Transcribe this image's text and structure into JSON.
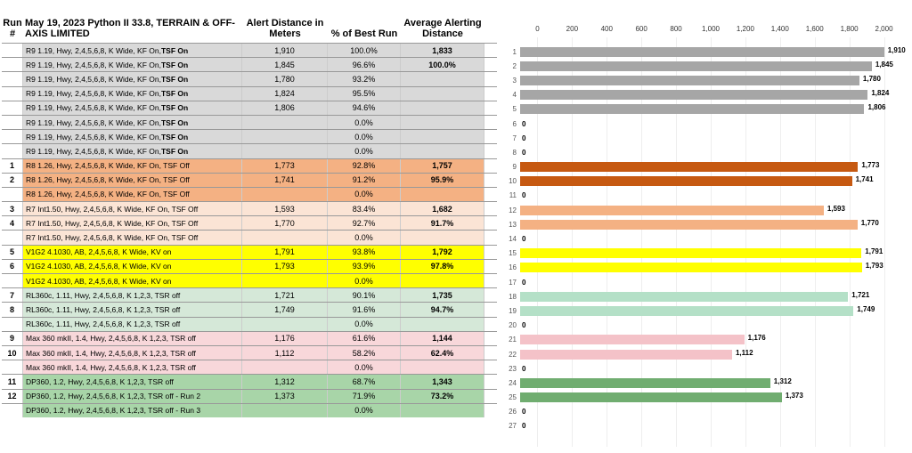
{
  "title": "May 19, 2023 Python II 33.8, TERRAIN & OFF-AXIS LIMITED",
  "columns": {
    "run": "Run #",
    "alert": "Alert Distance in Meters",
    "pct": "% of Best Run",
    "avg": "Average Alerting Distance"
  },
  "chart": {
    "x_min": 0,
    "x_max": 2000,
    "x_ticks": [
      0,
      200,
      400,
      600,
      800,
      1000,
      1200,
      1400,
      1600,
      1800,
      2000
    ],
    "max_bar": 2000
  },
  "colors": {
    "gray": "#d9d9d9",
    "orange_dark": "#f4b183",
    "orange_light": "#fbe4d5",
    "yellow": "#ffff00",
    "mint": "#d5e8d8",
    "pink": "#f8d7da",
    "green": "#a8d5a8",
    "bar_gray": "#a6a6a6",
    "bar_orange_dark": "#c65911",
    "bar_orange_light": "#f4b183",
    "bar_yellow": "#ffff00",
    "bar_mint": "#b4e0c7",
    "bar_pink": "#f4c2c8",
    "bar_green": "#70ad70"
  },
  "rows": [
    {
      "run": "",
      "desc_pre": "R9 1.19, Hwy, 2,4,5,6,8, K Wide, KF On, ",
      "desc_bold": "TSF On",
      "alert": "1,910",
      "pct": "100.0%",
      "avg": "1,833",
      "bg": "gray",
      "bar": 1910,
      "bar_color": "bar_gray"
    },
    {
      "run": "",
      "desc_pre": "R9 1.19, Hwy, 2,4,5,6,8, K Wide, KF On, ",
      "desc_bold": "TSF On",
      "alert": "1,845",
      "pct": "96.6%",
      "avg": "100.0%",
      "bg": "gray",
      "bar": 1845,
      "bar_color": "bar_gray"
    },
    {
      "run": "",
      "desc_pre": "R9 1.19, Hwy, 2,4,5,6,8, K Wide, KF On, ",
      "desc_bold": "TSF On",
      "alert": "1,780",
      "pct": "93.2%",
      "avg": "",
      "bg": "gray",
      "bar": 1780,
      "bar_color": "bar_gray"
    },
    {
      "run": "",
      "desc_pre": "R9 1.19, Hwy, 2,4,5,6,8, K Wide, KF On, ",
      "desc_bold": "TSF On",
      "alert": "1,824",
      "pct": "95.5%",
      "avg": "",
      "bg": "gray",
      "bar": 1824,
      "bar_color": "bar_gray"
    },
    {
      "run": "",
      "desc_pre": "R9 1.19, Hwy, 2,4,5,6,8, K Wide, KF On, ",
      "desc_bold": "TSF On",
      "alert": "1,806",
      "pct": "94.6%",
      "avg": "",
      "bg": "gray",
      "bar": 1806,
      "bar_color": "bar_gray"
    },
    {
      "run": "",
      "desc_pre": "R9 1.19, Hwy, 2,4,5,6,8, K Wide, KF On, ",
      "desc_bold": "TSF On",
      "alert": "",
      "pct": "0.0%",
      "avg": "",
      "bg": "gray",
      "bar": 0,
      "bar_color": "bar_gray"
    },
    {
      "run": "",
      "desc_pre": "R9 1.19, Hwy, 2,4,5,6,8, K Wide, KF On, ",
      "desc_bold": "TSF On",
      "alert": "",
      "pct": "0.0%",
      "avg": "",
      "bg": "gray",
      "bar": 0,
      "bar_color": "bar_gray"
    },
    {
      "run": "",
      "desc_pre": "R9 1.19, Hwy, 2,4,5,6,8, K Wide, KF On, ",
      "desc_bold": "TSF On",
      "alert": "",
      "pct": "0.0%",
      "avg": "",
      "bg": "gray",
      "bar": 0,
      "bar_color": "bar_gray"
    },
    {
      "run": "1",
      "desc_pre": "R8 1.26, Hwy, 2,4,5,6,8, K Wide, KF On, TSF Off",
      "desc_bold": "",
      "alert": "1,773",
      "pct": "92.8%",
      "avg": "1,757",
      "bg": "orange_dark",
      "bar": 1773,
      "bar_color": "bar_orange_dark"
    },
    {
      "run": "2",
      "desc_pre": "R8 1.26, Hwy, 2,4,5,6,8, K Wide, KF On, TSF Off",
      "desc_bold": "",
      "alert": "1,741",
      "pct": "91.2%",
      "avg": "95.9%",
      "bg": "orange_dark",
      "bar": 1741,
      "bar_color": "bar_orange_dark"
    },
    {
      "run": "",
      "desc_pre": "R8 1.26, Hwy, 2,4,5,6,8, K Wide, KF On, TSF Off",
      "desc_bold": "",
      "alert": "",
      "pct": "0.0%",
      "avg": "",
      "bg": "orange_dark",
      "bar": 0,
      "bar_color": "bar_orange_dark"
    },
    {
      "run": "3",
      "desc_pre": "R7 Int1.50, Hwy, 2,4,5,6,8, K Wide, KF On, TSF Off",
      "desc_bold": "",
      "alert": "1,593",
      "pct": "83.4%",
      "avg": "1,682",
      "bg": "orange_light",
      "bar": 1593,
      "bar_color": "bar_orange_light"
    },
    {
      "run": "4",
      "desc_pre": "R7 Int1.50, Hwy, 2,4,5,6,8, K Wide, KF On, TSF Off",
      "desc_bold": "",
      "alert": "1,770",
      "pct": "92.7%",
      "avg": "91.7%",
      "bg": "orange_light",
      "bar": 1770,
      "bar_color": "bar_orange_light"
    },
    {
      "run": "",
      "desc_pre": "R7 Int1.50, Hwy, 2,4,5,6,8, K Wide, KF On, TSF Off",
      "desc_bold": "",
      "alert": "",
      "pct": "0.0%",
      "avg": "",
      "bg": "orange_light",
      "bar": 0,
      "bar_color": "bar_orange_light"
    },
    {
      "run": "5",
      "desc_pre": "V1G2 4.1030, AB, 2,4,5,6,8, K Wide, KV on",
      "desc_bold": "",
      "alert": "1,791",
      "pct": "93.8%",
      "avg": "1,792",
      "bg": "yellow",
      "bar": 1791,
      "bar_color": "bar_yellow"
    },
    {
      "run": "6",
      "desc_pre": "V1G2 4.1030, AB, 2,4,5,6,8, K Wide, KV on",
      "desc_bold": "",
      "alert": "1,793",
      "pct": "93.9%",
      "avg": "97.8%",
      "bg": "yellow",
      "bar": 1793,
      "bar_color": "bar_yellow"
    },
    {
      "run": "",
      "desc_pre": "V1G2 4.1030, AB, 2,4,5,6,8, K Wide, KV on",
      "desc_bold": "",
      "alert": "",
      "pct": "0.0%",
      "avg": "",
      "bg": "yellow",
      "bar": 0,
      "bar_color": "bar_yellow"
    },
    {
      "run": "7",
      "desc_pre": "RL360c, 1.11, Hwy, 2,4,5,6,8, K 1,2,3, TSR off",
      "desc_bold": "",
      "alert": "1,721",
      "pct": "90.1%",
      "avg": "1,735",
      "bg": "mint",
      "bar": 1721,
      "bar_color": "bar_mint"
    },
    {
      "run": "8",
      "desc_pre": "RL360c, 1.11, Hwy, 2,4,5,6,8, K 1,2,3, TSR off",
      "desc_bold": "",
      "alert": "1,749",
      "pct": "91.6%",
      "avg": "94.7%",
      "bg": "mint",
      "bar": 1749,
      "bar_color": "bar_mint"
    },
    {
      "run": "",
      "desc_pre": "RL360c, 1.11, Hwy, 2,4,5,6,8, K 1,2,3, TSR off",
      "desc_bold": "",
      "alert": "",
      "pct": "0.0%",
      "avg": "",
      "bg": "mint",
      "bar": 0,
      "bar_color": "bar_mint"
    },
    {
      "run": "9",
      "desc_pre": "Max 360 mkII, 1.4,  Hwy, 2,4,5,6,8, K 1,2,3, TSR off",
      "desc_bold": "",
      "alert": "1,176",
      "pct": "61.6%",
      "avg": "1,144",
      "bg": "pink",
      "bar": 1176,
      "bar_color": "bar_pink"
    },
    {
      "run": "10",
      "desc_pre": "Max 360 mkII, 1.4,  Hwy, 2,4,5,6,8, K 1,2,3, TSR off",
      "desc_bold": "",
      "alert": "1,112",
      "pct": "58.2%",
      "avg": "62.4%",
      "bg": "pink",
      "bar": 1112,
      "bar_color": "bar_pink"
    },
    {
      "run": "",
      "desc_pre": "Max 360 mkII, 1.4,  Hwy, 2,4,5,6,8, K 1,2,3, TSR off",
      "desc_bold": "",
      "alert": "",
      "pct": "0.0%",
      "avg": "",
      "bg": "pink",
      "bar": 0,
      "bar_color": "bar_pink"
    },
    {
      "run": "11",
      "desc_pre": "DP360, 1.2, Hwy, 2,4,5,6,8, K 1,2,3, TSR off",
      "desc_bold": "",
      "alert": "1,312",
      "pct": "68.7%",
      "avg": "1,343",
      "bg": "green",
      "bar": 1312,
      "bar_color": "bar_green"
    },
    {
      "run": "12",
      "desc_pre": "DP360, 1.2, Hwy, 2,4,5,6,8, K 1,2,3, TSR off - Run 2",
      "desc_bold": "",
      "alert": "1,373",
      "pct": "71.9%",
      "avg": "73.2%",
      "bg": "green",
      "bar": 1373,
      "bar_color": "bar_green"
    },
    {
      "run": "",
      "desc_pre": "DP360, 1.2, Hwy, 2,4,5,6,8, K 1,2,3, TSR off - Run 3",
      "desc_bold": "",
      "alert": "",
      "pct": "0.0%",
      "avg": "",
      "bg": "green",
      "bar": 0,
      "bar_color": "bar_green"
    },
    {
      "run": "",
      "desc_pre": "",
      "desc_bold": "",
      "alert": "",
      "pct": "",
      "avg": "",
      "bg": "",
      "bar": 0,
      "bar_color": "bar_gray",
      "extra": true
    }
  ]
}
